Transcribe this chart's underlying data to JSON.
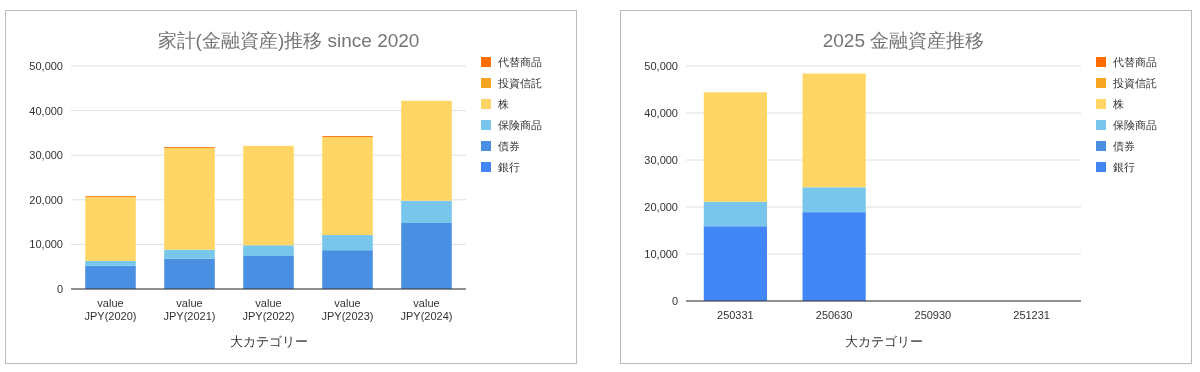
{
  "chart_data": [
    {
      "type": "bar",
      "stacked": true,
      "title": "家計(金融資産)推移 since 2020",
      "xlabel": "大カテゴリー",
      "categories": [
        "value\nJPY(2020)",
        "value\nJPY(2021)",
        "value\nJPY(2022)",
        "value\nJPY(2023)",
        "value\nJPY(2024)"
      ],
      "ylim": [
        0,
        50000
      ],
      "yticks": [
        0,
        {
          "value": 10000,
          "label": "10,000"
        },
        {
          "value": 20000,
          "label": "20,000"
        },
        {
          "value": 30000,
          "label": "30,000"
        },
        {
          "value": 40000,
          "label": "40,000"
        },
        {
          "value": 50000,
          "label": "50,000"
        }
      ],
      "grid": "y",
      "legend": "right",
      "series": [
        {
          "name": "銀行",
          "color": "#4285f4",
          "values": [
            null,
            null,
            null,
            null,
            null
          ]
        },
        {
          "name": "債券",
          "color": "#4a90e2",
          "values": [
            5200,
            6800,
            7400,
            8700,
            14800
          ]
        },
        {
          "name": "保険商品",
          "color": "#78c6eb",
          "values": [
            1100,
            2000,
            2400,
            3400,
            5000
          ]
        },
        {
          "name": "株",
          "color": "#ffd666",
          "values": [
            14300,
            22800,
            22300,
            22000,
            22400
          ]
        },
        {
          "name": "投資信託",
          "color": "#f6a623",
          "values": [
            null,
            null,
            null,
            null,
            null
          ]
        },
        {
          "name": "代替商品",
          "color": "#ff6d01",
          "values": [
            200,
            200,
            null,
            200,
            null
          ]
        }
      ]
    },
    {
      "type": "bar",
      "stacked": true,
      "title": "2025 金融資産推移",
      "xlabel": "大カテゴリー",
      "categories": [
        "250331",
        "250630",
        "250930",
        "251231"
      ],
      "ylim": [
        0,
        50000
      ],
      "yticks": [
        0,
        {
          "value": 10000,
          "label": "10,000"
        },
        {
          "value": 20000,
          "label": "20,000"
        },
        {
          "value": 30000,
          "label": "30,000"
        },
        {
          "value": 40000,
          "label": "40,000"
        },
        {
          "value": 50000,
          "label": "50,000"
        }
      ],
      "grid": "y",
      "legend": "right",
      "series": [
        {
          "name": "銀行",
          "color": "#4285f4",
          "values": [
            15900,
            18900,
            null,
            null
          ]
        },
        {
          "name": "債券",
          "color": "#4a90e2",
          "values": [
            null,
            null,
            null,
            null
          ]
        },
        {
          "name": "保険商品",
          "color": "#78c6eb",
          "values": [
            5200,
            5300,
            null,
            null
          ]
        },
        {
          "name": "株",
          "color": "#ffd666",
          "values": [
            23300,
            24200,
            null,
            null
          ]
        },
        {
          "name": "投資信託",
          "color": "#f6a623",
          "values": [
            null,
            null,
            null,
            null
          ]
        },
        {
          "name": "代替商品",
          "color": "#ff6d01",
          "values": [
            null,
            null,
            null,
            null
          ]
        }
      ]
    }
  ]
}
